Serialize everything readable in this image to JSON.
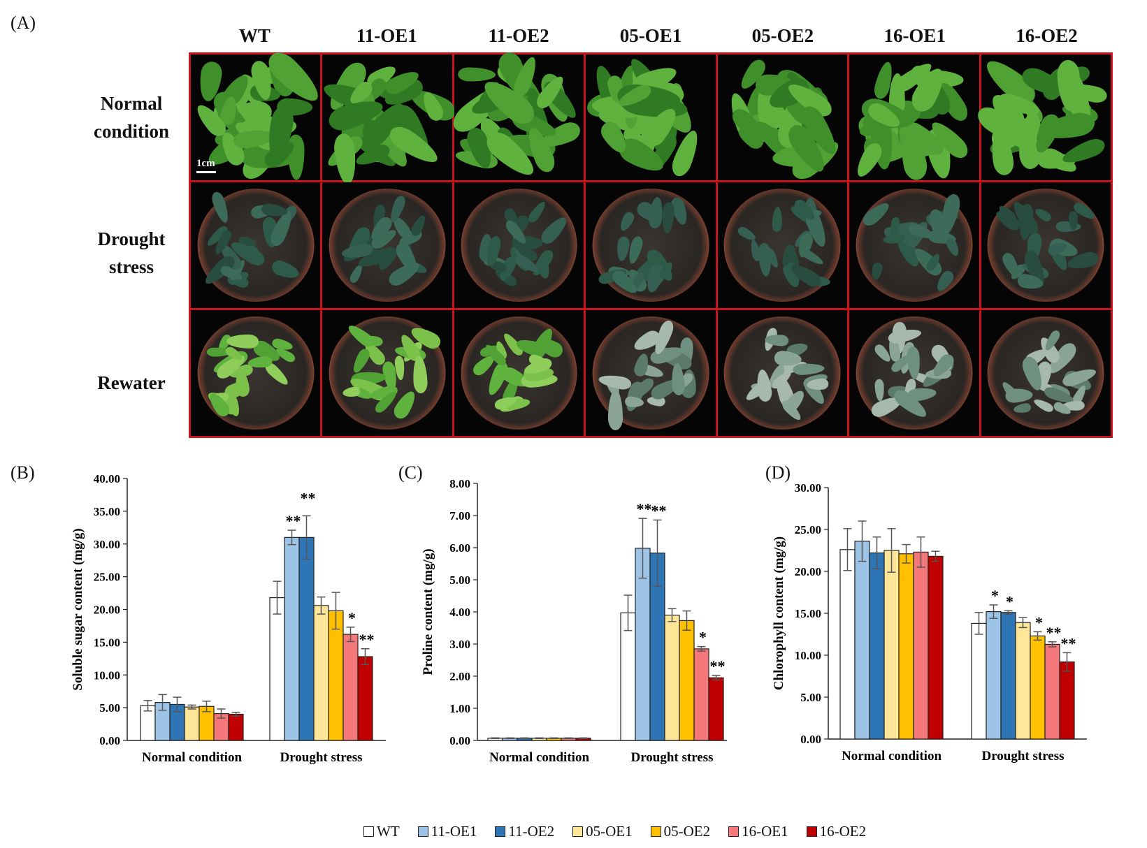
{
  "panels": {
    "a_label": "(A)",
    "b_label": "(B)",
    "c_label": "(C)",
    "d_label": "(D)"
  },
  "photo_grid": {
    "columns": [
      "WT",
      "11-OE1",
      "11-OE2",
      "05-OE1",
      "05-OE2",
      "16-OE1",
      "16-OE2"
    ],
    "rows": [
      {
        "line1": "Normal",
        "line2": "condition"
      },
      {
        "line1": "Drought",
        "line2": "stress"
      },
      {
        "line1": "Rewater",
        "line2": ""
      }
    ],
    "scale_bar": "1cm"
  },
  "colors": {
    "WT": "#ffffff",
    "11-OE1": "#9dc3e6",
    "11-OE2": "#2e75b6",
    "05-OE1": "#ffe699",
    "05-OE2": "#ffc000",
    "16-OE1": "#f4777a",
    "16-OE2": "#c00000",
    "frame": "#c8141e"
  },
  "legend": [
    "WT",
    "11-OE1",
    "11-OE2",
    "05-OE1",
    "05-OE2",
    "16-OE1",
    "16-OE2"
  ],
  "chart_data": [
    {
      "id": "B",
      "type": "bar",
      "ylabel": "Soluble sugar content (mg/g)",
      "categories": [
        "Normal condition",
        "Drought stress"
      ],
      "ylim": [
        0,
        40
      ],
      "yticks": [
        "0.00",
        "5.00",
        "10.00",
        "15.00",
        "20.00",
        "25.00",
        "30.00",
        "35.00",
        "40.00"
      ],
      "series": [
        {
          "name": "WT",
          "values": [
            5.3,
            21.8
          ],
          "errors": [
            0.8,
            2.5
          ],
          "sig": [
            "",
            ""
          ]
        },
        {
          "name": "11-OE1",
          "values": [
            5.8,
            31.0
          ],
          "errors": [
            1.2,
            1.1
          ],
          "sig": [
            "",
            "**"
          ]
        },
        {
          "name": "11-OE2",
          "values": [
            5.5,
            31.0
          ],
          "errors": [
            1.1,
            3.3
          ],
          "sig": [
            "",
            "**"
          ]
        },
        {
          "name": "05-OE1",
          "values": [
            5.1,
            20.6
          ],
          "errors": [
            0.3,
            1.3
          ],
          "sig": [
            "",
            ""
          ]
        },
        {
          "name": "05-OE2",
          "values": [
            5.2,
            19.8
          ],
          "errors": [
            0.8,
            2.8
          ],
          "sig": [
            "",
            ""
          ]
        },
        {
          "name": "16-OE1",
          "values": [
            4.1,
            16.2
          ],
          "errors": [
            0.7,
            1.1
          ],
          "sig": [
            "",
            "*"
          ]
        },
        {
          "name": "16-OE2",
          "values": [
            4.0,
            12.8
          ],
          "errors": [
            0.3,
            1.2
          ],
          "sig": [
            "",
            "**"
          ]
        }
      ]
    },
    {
      "id": "C",
      "type": "bar",
      "ylabel": "Proline content (mg/g)",
      "categories": [
        "Normal condition",
        "Drought stress"
      ],
      "ylim": [
        0,
        8
      ],
      "yticks": [
        "0.00",
        "1.00",
        "2.00",
        "3.00",
        "4.00",
        "5.00",
        "6.00",
        "7.00",
        "8.00"
      ],
      "series": [
        {
          "name": "WT",
          "values": [
            0.07,
            3.97
          ],
          "errors": [
            0.01,
            0.55
          ],
          "sig": [
            "",
            ""
          ]
        },
        {
          "name": "11-OE1",
          "values": [
            0.07,
            5.98
          ],
          "errors": [
            0.01,
            0.93
          ],
          "sig": [
            "",
            "**"
          ]
        },
        {
          "name": "11-OE2",
          "values": [
            0.07,
            5.83
          ],
          "errors": [
            0.01,
            1.03
          ],
          "sig": [
            "",
            "**"
          ]
        },
        {
          "name": "05-OE1",
          "values": [
            0.07,
            3.9
          ],
          "errors": [
            0.01,
            0.2
          ],
          "sig": [
            "",
            ""
          ]
        },
        {
          "name": "05-OE2",
          "values": [
            0.07,
            3.73
          ],
          "errors": [
            0.01,
            0.3
          ],
          "sig": [
            "",
            ""
          ]
        },
        {
          "name": "16-OE1",
          "values": [
            0.07,
            2.85
          ],
          "errors": [
            0.01,
            0.07
          ],
          "sig": [
            "",
            "*"
          ]
        },
        {
          "name": "16-OE2",
          "values": [
            0.07,
            1.95
          ],
          "errors": [
            0.01,
            0.07
          ],
          "sig": [
            "",
            "**"
          ]
        }
      ]
    },
    {
      "id": "D",
      "type": "bar",
      "ylabel": "Chlorophyll content (mg/g)",
      "categories": [
        "Normal condition",
        "Drought stress"
      ],
      "ylim": [
        0,
        30
      ],
      "yticks": [
        "0.00",
        "5.00",
        "10.00",
        "15.00",
        "20.00",
        "25.00",
        "30.00"
      ],
      "series": [
        {
          "name": "WT",
          "values": [
            22.6,
            13.8
          ],
          "errors": [
            2.5,
            1.3
          ],
          "sig": [
            "",
            ""
          ]
        },
        {
          "name": "11-OE1",
          "values": [
            23.6,
            15.2
          ],
          "errors": [
            2.4,
            0.8
          ],
          "sig": [
            "",
            "*"
          ]
        },
        {
          "name": "11-OE2",
          "values": [
            22.2,
            15.1
          ],
          "errors": [
            1.9,
            0.2
          ],
          "sig": [
            "",
            "*"
          ]
        },
        {
          "name": "05-OE1",
          "values": [
            22.5,
            13.9
          ],
          "errors": [
            2.6,
            0.6
          ],
          "sig": [
            "",
            ""
          ]
        },
        {
          "name": "05-OE2",
          "values": [
            22.1,
            12.3
          ],
          "errors": [
            1.1,
            0.5
          ],
          "sig": [
            "",
            "*"
          ]
        },
        {
          "name": "16-OE1",
          "values": [
            22.3,
            11.3
          ],
          "errors": [
            1.8,
            0.3
          ],
          "sig": [
            "",
            "**"
          ]
        },
        {
          "name": "16-OE2",
          "values": [
            21.8,
            9.2
          ],
          "errors": [
            0.6,
            1.1
          ],
          "sig": [
            "",
            "**"
          ]
        }
      ]
    }
  ]
}
